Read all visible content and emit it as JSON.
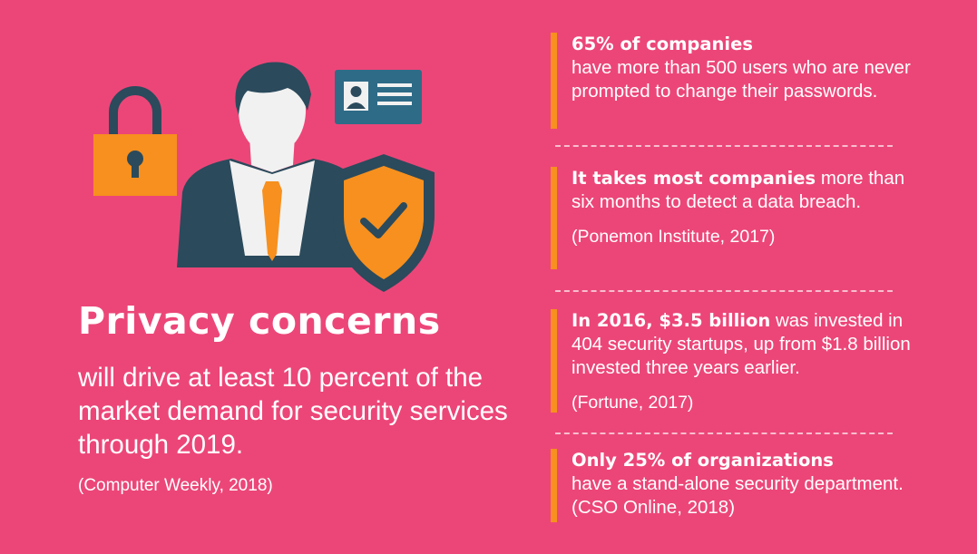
{
  "illustration": {
    "icons": [
      "padlock-icon",
      "businessman-icon",
      "id-card-icon",
      "shield-check-icon"
    ],
    "colors": {
      "background": "#ec4678",
      "accent": "#f7901e",
      "navy": "#2b4a5c",
      "card": "#2e6b87",
      "skin": "#f1f1f1"
    }
  },
  "headline": "Privacy concerns",
  "subtext": "will drive at least 10 percent of the market demand for security services through 2019.",
  "source": "(Computer Weekly, 2018)",
  "facts": [
    {
      "bold": "65% of companies",
      "text": "have more than 500 users who are never prompted to change their passwords.",
      "source": ""
    },
    {
      "bold": "It takes most companies",
      "text": " more than six months to detect a data breach.",
      "source": "(Ponemon Institute, 2017)"
    },
    {
      "bold": "In 2016, $3.5 billion",
      "text": " was invested in 404 security startups, up from $1.8 billion invested three years earlier.",
      "source": "(Fortune, 2017)"
    },
    {
      "bold": "Only 25% of organizations",
      "text": "have a stand-alone security department. (CSO Online, 2018)",
      "source": ""
    }
  ]
}
